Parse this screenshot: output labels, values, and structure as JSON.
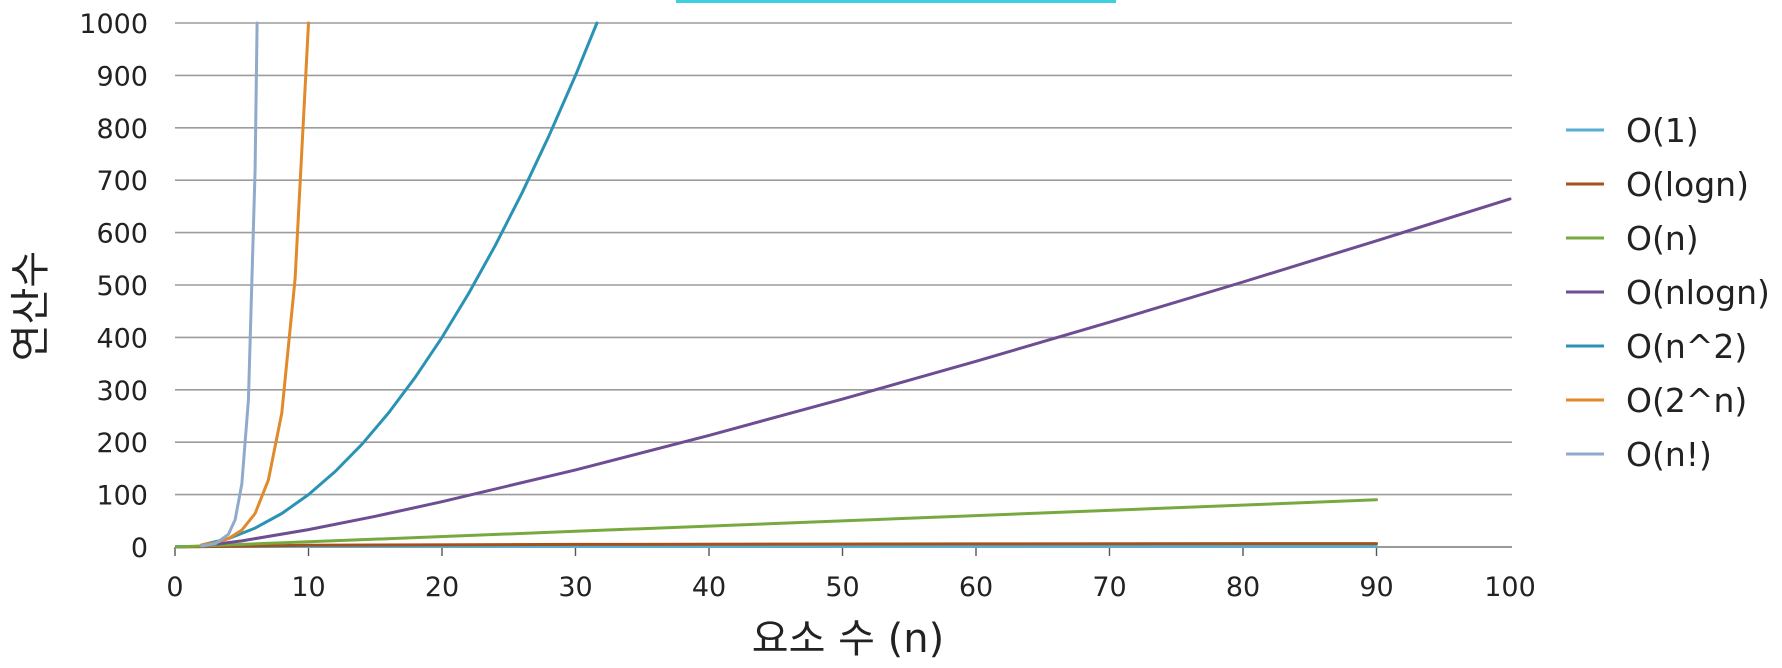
{
  "chart_data": {
    "type": "line",
    "xlabel": "요소 수 (n)",
    "ylabel": "연산수",
    "xlim": [
      0,
      100
    ],
    "ylim": [
      0,
      1000
    ],
    "x_ticks": [
      "0",
      "10",
      "20",
      "30",
      "40",
      "50",
      "60",
      "70",
      "80",
      "90",
      "100"
    ],
    "y_ticks": [
      "0",
      "100",
      "200",
      "300",
      "400",
      "500",
      "600",
      "700",
      "800",
      "900",
      "1000"
    ],
    "grid": "horizontal",
    "legend_position": "right",
    "series": [
      {
        "name": "O(1)",
        "color": "#5aaed4",
        "points": [
          [
            0,
            1
          ],
          [
            90,
            1
          ]
        ]
      },
      {
        "name": "O(logn)",
        "color": "#a5511b",
        "points": [
          [
            0,
            0
          ],
          [
            10,
            3.3
          ],
          [
            30,
            4.9
          ],
          [
            60,
            5.9
          ],
          [
            90,
            6.5
          ]
        ]
      },
      {
        "name": "O(n)",
        "color": "#78a93f",
        "points": [
          [
            0,
            0
          ],
          [
            10,
            10
          ],
          [
            30,
            30
          ],
          [
            60,
            60
          ],
          [
            90,
            90
          ]
        ]
      },
      {
        "name": "O(nlogn)",
        "color": "#6d4e93",
        "points": [
          [
            2,
            2
          ],
          [
            5,
            11.6
          ],
          [
            10,
            33.2
          ],
          [
            15,
            58.6
          ],
          [
            20,
            86.4
          ],
          [
            30,
            147.2
          ],
          [
            40,
            212.9
          ],
          [
            50,
            282.2
          ],
          [
            60,
            354.4
          ],
          [
            70,
            429.1
          ],
          [
            80,
            505.8
          ],
          [
            90,
            584.3
          ],
          [
            100,
            664.4
          ]
        ]
      },
      {
        "name": "O(n^2)",
        "color": "#2a93b5",
        "points": [
          [
            2,
            4
          ],
          [
            4,
            16
          ],
          [
            6,
            36
          ],
          [
            8,
            64
          ],
          [
            10,
            100
          ],
          [
            12,
            144
          ],
          [
            14,
            196
          ],
          [
            16,
            256
          ],
          [
            18,
            324
          ],
          [
            20,
            400
          ],
          [
            22,
            484
          ],
          [
            24,
            576
          ],
          [
            26,
            676
          ],
          [
            28,
            784
          ],
          [
            30,
            900
          ],
          [
            31.6,
            1000
          ]
        ]
      },
      {
        "name": "O(2^n)",
        "color": "#e08a2b",
        "points": [
          [
            2,
            4
          ],
          [
            3,
            8
          ],
          [
            4,
            16
          ],
          [
            5,
            32
          ],
          [
            6,
            64
          ],
          [
            7,
            128
          ],
          [
            8,
            256
          ],
          [
            9,
            512
          ],
          [
            10,
            1000
          ]
        ]
      },
      {
        "name": "O(n!)",
        "color": "#90aacb",
        "points": [
          [
            2,
            2
          ],
          [
            3,
            6
          ],
          [
            4,
            24
          ],
          [
            4.5,
            52
          ],
          [
            5,
            120
          ],
          [
            5.5,
            280
          ],
          [
            6,
            720
          ],
          [
            6.15,
            1000
          ]
        ]
      }
    ]
  }
}
